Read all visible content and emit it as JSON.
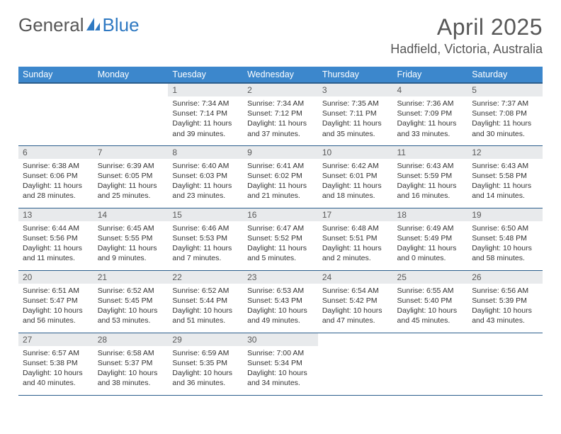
{
  "brand": {
    "part1": "General",
    "part2": "Blue"
  },
  "title": "April 2025",
  "location": "Hadfield, Victoria, Australia",
  "colors": {
    "header_bg": "#3c87cc",
    "header_border": "#2b5e8c",
    "daynum_bg": "#e8eaec",
    "text": "#333333",
    "title": "#575757"
  },
  "weekdays": [
    "Sunday",
    "Monday",
    "Tuesday",
    "Wednesday",
    "Thursday",
    "Friday",
    "Saturday"
  ],
  "weeks": [
    [
      {
        "n": "",
        "sunrise": "",
        "sunset": "",
        "daylight": ""
      },
      {
        "n": "",
        "sunrise": "",
        "sunset": "",
        "daylight": ""
      },
      {
        "n": "1",
        "sunrise": "Sunrise: 7:34 AM",
        "sunset": "Sunset: 7:14 PM",
        "daylight": "Daylight: 11 hours and 39 minutes."
      },
      {
        "n": "2",
        "sunrise": "Sunrise: 7:34 AM",
        "sunset": "Sunset: 7:12 PM",
        "daylight": "Daylight: 11 hours and 37 minutes."
      },
      {
        "n": "3",
        "sunrise": "Sunrise: 7:35 AM",
        "sunset": "Sunset: 7:11 PM",
        "daylight": "Daylight: 11 hours and 35 minutes."
      },
      {
        "n": "4",
        "sunrise": "Sunrise: 7:36 AM",
        "sunset": "Sunset: 7:09 PM",
        "daylight": "Daylight: 11 hours and 33 minutes."
      },
      {
        "n": "5",
        "sunrise": "Sunrise: 7:37 AM",
        "sunset": "Sunset: 7:08 PM",
        "daylight": "Daylight: 11 hours and 30 minutes."
      }
    ],
    [
      {
        "n": "6",
        "sunrise": "Sunrise: 6:38 AM",
        "sunset": "Sunset: 6:06 PM",
        "daylight": "Daylight: 11 hours and 28 minutes."
      },
      {
        "n": "7",
        "sunrise": "Sunrise: 6:39 AM",
        "sunset": "Sunset: 6:05 PM",
        "daylight": "Daylight: 11 hours and 25 minutes."
      },
      {
        "n": "8",
        "sunrise": "Sunrise: 6:40 AM",
        "sunset": "Sunset: 6:03 PM",
        "daylight": "Daylight: 11 hours and 23 minutes."
      },
      {
        "n": "9",
        "sunrise": "Sunrise: 6:41 AM",
        "sunset": "Sunset: 6:02 PM",
        "daylight": "Daylight: 11 hours and 21 minutes."
      },
      {
        "n": "10",
        "sunrise": "Sunrise: 6:42 AM",
        "sunset": "Sunset: 6:01 PM",
        "daylight": "Daylight: 11 hours and 18 minutes."
      },
      {
        "n": "11",
        "sunrise": "Sunrise: 6:43 AM",
        "sunset": "Sunset: 5:59 PM",
        "daylight": "Daylight: 11 hours and 16 minutes."
      },
      {
        "n": "12",
        "sunrise": "Sunrise: 6:43 AM",
        "sunset": "Sunset: 5:58 PM",
        "daylight": "Daylight: 11 hours and 14 minutes."
      }
    ],
    [
      {
        "n": "13",
        "sunrise": "Sunrise: 6:44 AM",
        "sunset": "Sunset: 5:56 PM",
        "daylight": "Daylight: 11 hours and 11 minutes."
      },
      {
        "n": "14",
        "sunrise": "Sunrise: 6:45 AM",
        "sunset": "Sunset: 5:55 PM",
        "daylight": "Daylight: 11 hours and 9 minutes."
      },
      {
        "n": "15",
        "sunrise": "Sunrise: 6:46 AM",
        "sunset": "Sunset: 5:53 PM",
        "daylight": "Daylight: 11 hours and 7 minutes."
      },
      {
        "n": "16",
        "sunrise": "Sunrise: 6:47 AM",
        "sunset": "Sunset: 5:52 PM",
        "daylight": "Daylight: 11 hours and 5 minutes."
      },
      {
        "n": "17",
        "sunrise": "Sunrise: 6:48 AM",
        "sunset": "Sunset: 5:51 PM",
        "daylight": "Daylight: 11 hours and 2 minutes."
      },
      {
        "n": "18",
        "sunrise": "Sunrise: 6:49 AM",
        "sunset": "Sunset: 5:49 PM",
        "daylight": "Daylight: 11 hours and 0 minutes."
      },
      {
        "n": "19",
        "sunrise": "Sunrise: 6:50 AM",
        "sunset": "Sunset: 5:48 PM",
        "daylight": "Daylight: 10 hours and 58 minutes."
      }
    ],
    [
      {
        "n": "20",
        "sunrise": "Sunrise: 6:51 AM",
        "sunset": "Sunset: 5:47 PM",
        "daylight": "Daylight: 10 hours and 56 minutes."
      },
      {
        "n": "21",
        "sunrise": "Sunrise: 6:52 AM",
        "sunset": "Sunset: 5:45 PM",
        "daylight": "Daylight: 10 hours and 53 minutes."
      },
      {
        "n": "22",
        "sunrise": "Sunrise: 6:52 AM",
        "sunset": "Sunset: 5:44 PM",
        "daylight": "Daylight: 10 hours and 51 minutes."
      },
      {
        "n": "23",
        "sunrise": "Sunrise: 6:53 AM",
        "sunset": "Sunset: 5:43 PM",
        "daylight": "Daylight: 10 hours and 49 minutes."
      },
      {
        "n": "24",
        "sunrise": "Sunrise: 6:54 AM",
        "sunset": "Sunset: 5:42 PM",
        "daylight": "Daylight: 10 hours and 47 minutes."
      },
      {
        "n": "25",
        "sunrise": "Sunrise: 6:55 AM",
        "sunset": "Sunset: 5:40 PM",
        "daylight": "Daylight: 10 hours and 45 minutes."
      },
      {
        "n": "26",
        "sunrise": "Sunrise: 6:56 AM",
        "sunset": "Sunset: 5:39 PM",
        "daylight": "Daylight: 10 hours and 43 minutes."
      }
    ],
    [
      {
        "n": "27",
        "sunrise": "Sunrise: 6:57 AM",
        "sunset": "Sunset: 5:38 PM",
        "daylight": "Daylight: 10 hours and 40 minutes."
      },
      {
        "n": "28",
        "sunrise": "Sunrise: 6:58 AM",
        "sunset": "Sunset: 5:37 PM",
        "daylight": "Daylight: 10 hours and 38 minutes."
      },
      {
        "n": "29",
        "sunrise": "Sunrise: 6:59 AM",
        "sunset": "Sunset: 5:35 PM",
        "daylight": "Daylight: 10 hours and 36 minutes."
      },
      {
        "n": "30",
        "sunrise": "Sunrise: 7:00 AM",
        "sunset": "Sunset: 5:34 PM",
        "daylight": "Daylight: 10 hours and 34 minutes."
      },
      {
        "n": "",
        "sunrise": "",
        "sunset": "",
        "daylight": ""
      },
      {
        "n": "",
        "sunrise": "",
        "sunset": "",
        "daylight": ""
      },
      {
        "n": "",
        "sunrise": "",
        "sunset": "",
        "daylight": ""
      }
    ]
  ]
}
